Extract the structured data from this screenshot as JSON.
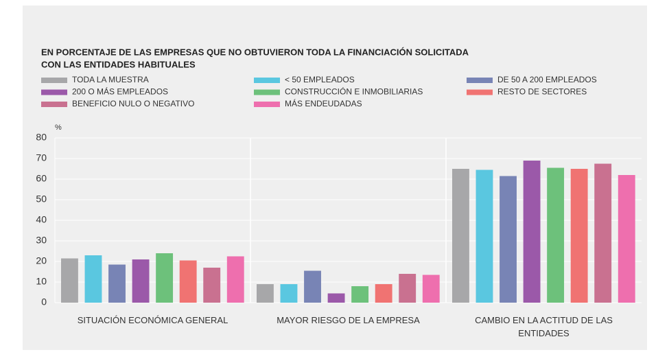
{
  "chart_data": {
    "type": "bar",
    "title": [
      "EN PORCENTAJE DE LAS EMPRESAS QUE NO OBTUVIERON TODA LA FINANCIACIÓN SOLICITADA",
      "CON LAS ENTIDADES HABITUALES"
    ],
    "y_label": "%",
    "categories": [
      "SITUACIÓN ECONÓMICA GENERAL",
      "MAYOR RIESGO DE LA EMPRESA",
      "CAMBIO EN LA ACTITUD DE LAS ENTIDADES"
    ],
    "series": [
      {
        "name": "TODA LA MUESTRA",
        "color": "#a7a7a9",
        "values": [
          21.5,
          9,
          65
        ]
      },
      {
        "name": "< 50 EMPLEADOS",
        "color": "#5ac7e0",
        "values": [
          23,
          9,
          64.5
        ]
      },
      {
        "name": "DE 50 A 200 EMPLEADOS",
        "color": "#7884b5",
        "values": [
          18.5,
          15.5,
          61.5
        ]
      },
      {
        "name": "200 O MÁS EMPLEADOS",
        "color": "#9b59a9",
        "values": [
          21,
          4.5,
          69
        ]
      },
      {
        "name": "CONSTRUCCIÓN E INMOBILIARIAS",
        "color": "#6dc17b",
        "values": [
          24,
          8,
          65.5
        ]
      },
      {
        "name": "RESTO DE SECTORES",
        "color": "#f07372",
        "values": [
          20.5,
          9,
          65
        ]
      },
      {
        "name": "BENEFICIO NULO O NEGATIVO",
        "color": "#c97190",
        "values": [
          17,
          14,
          67.5
        ]
      },
      {
        "name": "MÁS ENDEUDADAS",
        "color": "#ee6fae",
        "values": [
          22.5,
          13.5,
          62
        ]
      }
    ],
    "ylim": [
      0,
      80
    ],
    "yticks": [
      0,
      10,
      20,
      30,
      40,
      50,
      60,
      70,
      80
    ],
    "grid": true
  }
}
